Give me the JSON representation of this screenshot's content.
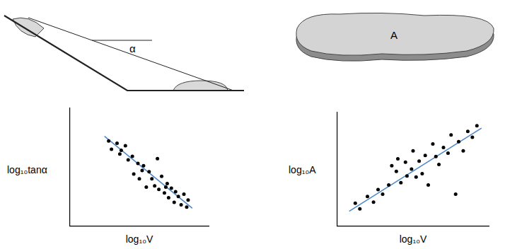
{
  "diagrams": {
    "slope": {
      "angle_label": "α"
    },
    "slab": {
      "label": "A"
    }
  },
  "chart_data": [
    {
      "type": "scatter",
      "xlabel": "log₁₀V",
      "ylabel": "log₁₀tanα",
      "xlim": [
        0,
        10
      ],
      "ylim": [
        0,
        10
      ],
      "grid": false,
      "tick_labels": false,
      "series": [
        {
          "type": "scatter",
          "marker": "circle",
          "color": "#000000",
          "x": [
            2.8,
            3.0,
            3.4,
            3.6,
            4.0,
            4.2,
            4.5,
            4.6,
            4.9,
            5.0,
            5.3,
            5.5,
            5.7,
            5.9,
            6.1,
            6.3,
            6.4,
            6.6,
            6.8,
            7.0,
            7.1,
            7.3,
            7.5,
            7.6,
            7.8,
            8.0,
            8.2,
            8.4,
            8.5,
            3.7,
            5.2,
            6.9
          ],
          "y": [
            7.2,
            6.5,
            7.0,
            6.1,
            6.8,
            5.6,
            5.9,
            4.4,
            5.3,
            4.0,
            5.1,
            3.3,
            4.6,
            4.0,
            3.4,
            5.7,
            3.1,
            4.2,
            2.8,
            3.6,
            2.4,
            3.2,
            2.0,
            2.9,
            2.5,
            1.8,
            2.7,
            1.6,
            2.2,
            6.4,
            4.7,
            3.3
          ]
        },
        {
          "type": "line",
          "line_style": "solid",
          "color": "#4a86c8",
          "x": [
            2.5,
            8.8
          ],
          "y": [
            7.6,
            1.5
          ]
        }
      ]
    },
    {
      "type": "scatter",
      "xlabel": "log₁₀V",
      "ylabel": "log₁₀A",
      "xlim": [
        0,
        10
      ],
      "ylim": [
        0,
        10
      ],
      "grid": false,
      "tick_labels": false,
      "series": [
        {
          "type": "scatter",
          "marker": "circle",
          "color": "#000000",
          "x": [
            1.2,
            1.5,
            2.0,
            2.4,
            3.0,
            3.4,
            3.6,
            3.9,
            4.2,
            4.5,
            4.6,
            4.9,
            5.2,
            5.4,
            5.6,
            5.8,
            6.0,
            6.3,
            6.5,
            6.7,
            7.0,
            7.3,
            7.5,
            7.8,
            8.0,
            8.3,
            8.6,
            8.9,
            9.2,
            5.0,
            4.0,
            2.7
          ],
          "y": [
            2.0,
            1.5,
            2.6,
            2.1,
            2.8,
            3.6,
            5.3,
            4.8,
            3.8,
            5.6,
            4.4,
            5.0,
            4.3,
            5.7,
            4.6,
            6.2,
            3.6,
            7.2,
            6.1,
            5.4,
            6.9,
            6.4,
            8.0,
            2.8,
            7.4,
            6.6,
            8.3,
            7.8,
            8.8,
            6.6,
            5.9,
            3.2
          ]
        },
        {
          "type": "line",
          "line_style": "solid",
          "color": "#4a86c8",
          "x": [
            0.8,
            9.5
          ],
          "y": [
            1.3,
            8.6
          ]
        }
      ]
    }
  ]
}
